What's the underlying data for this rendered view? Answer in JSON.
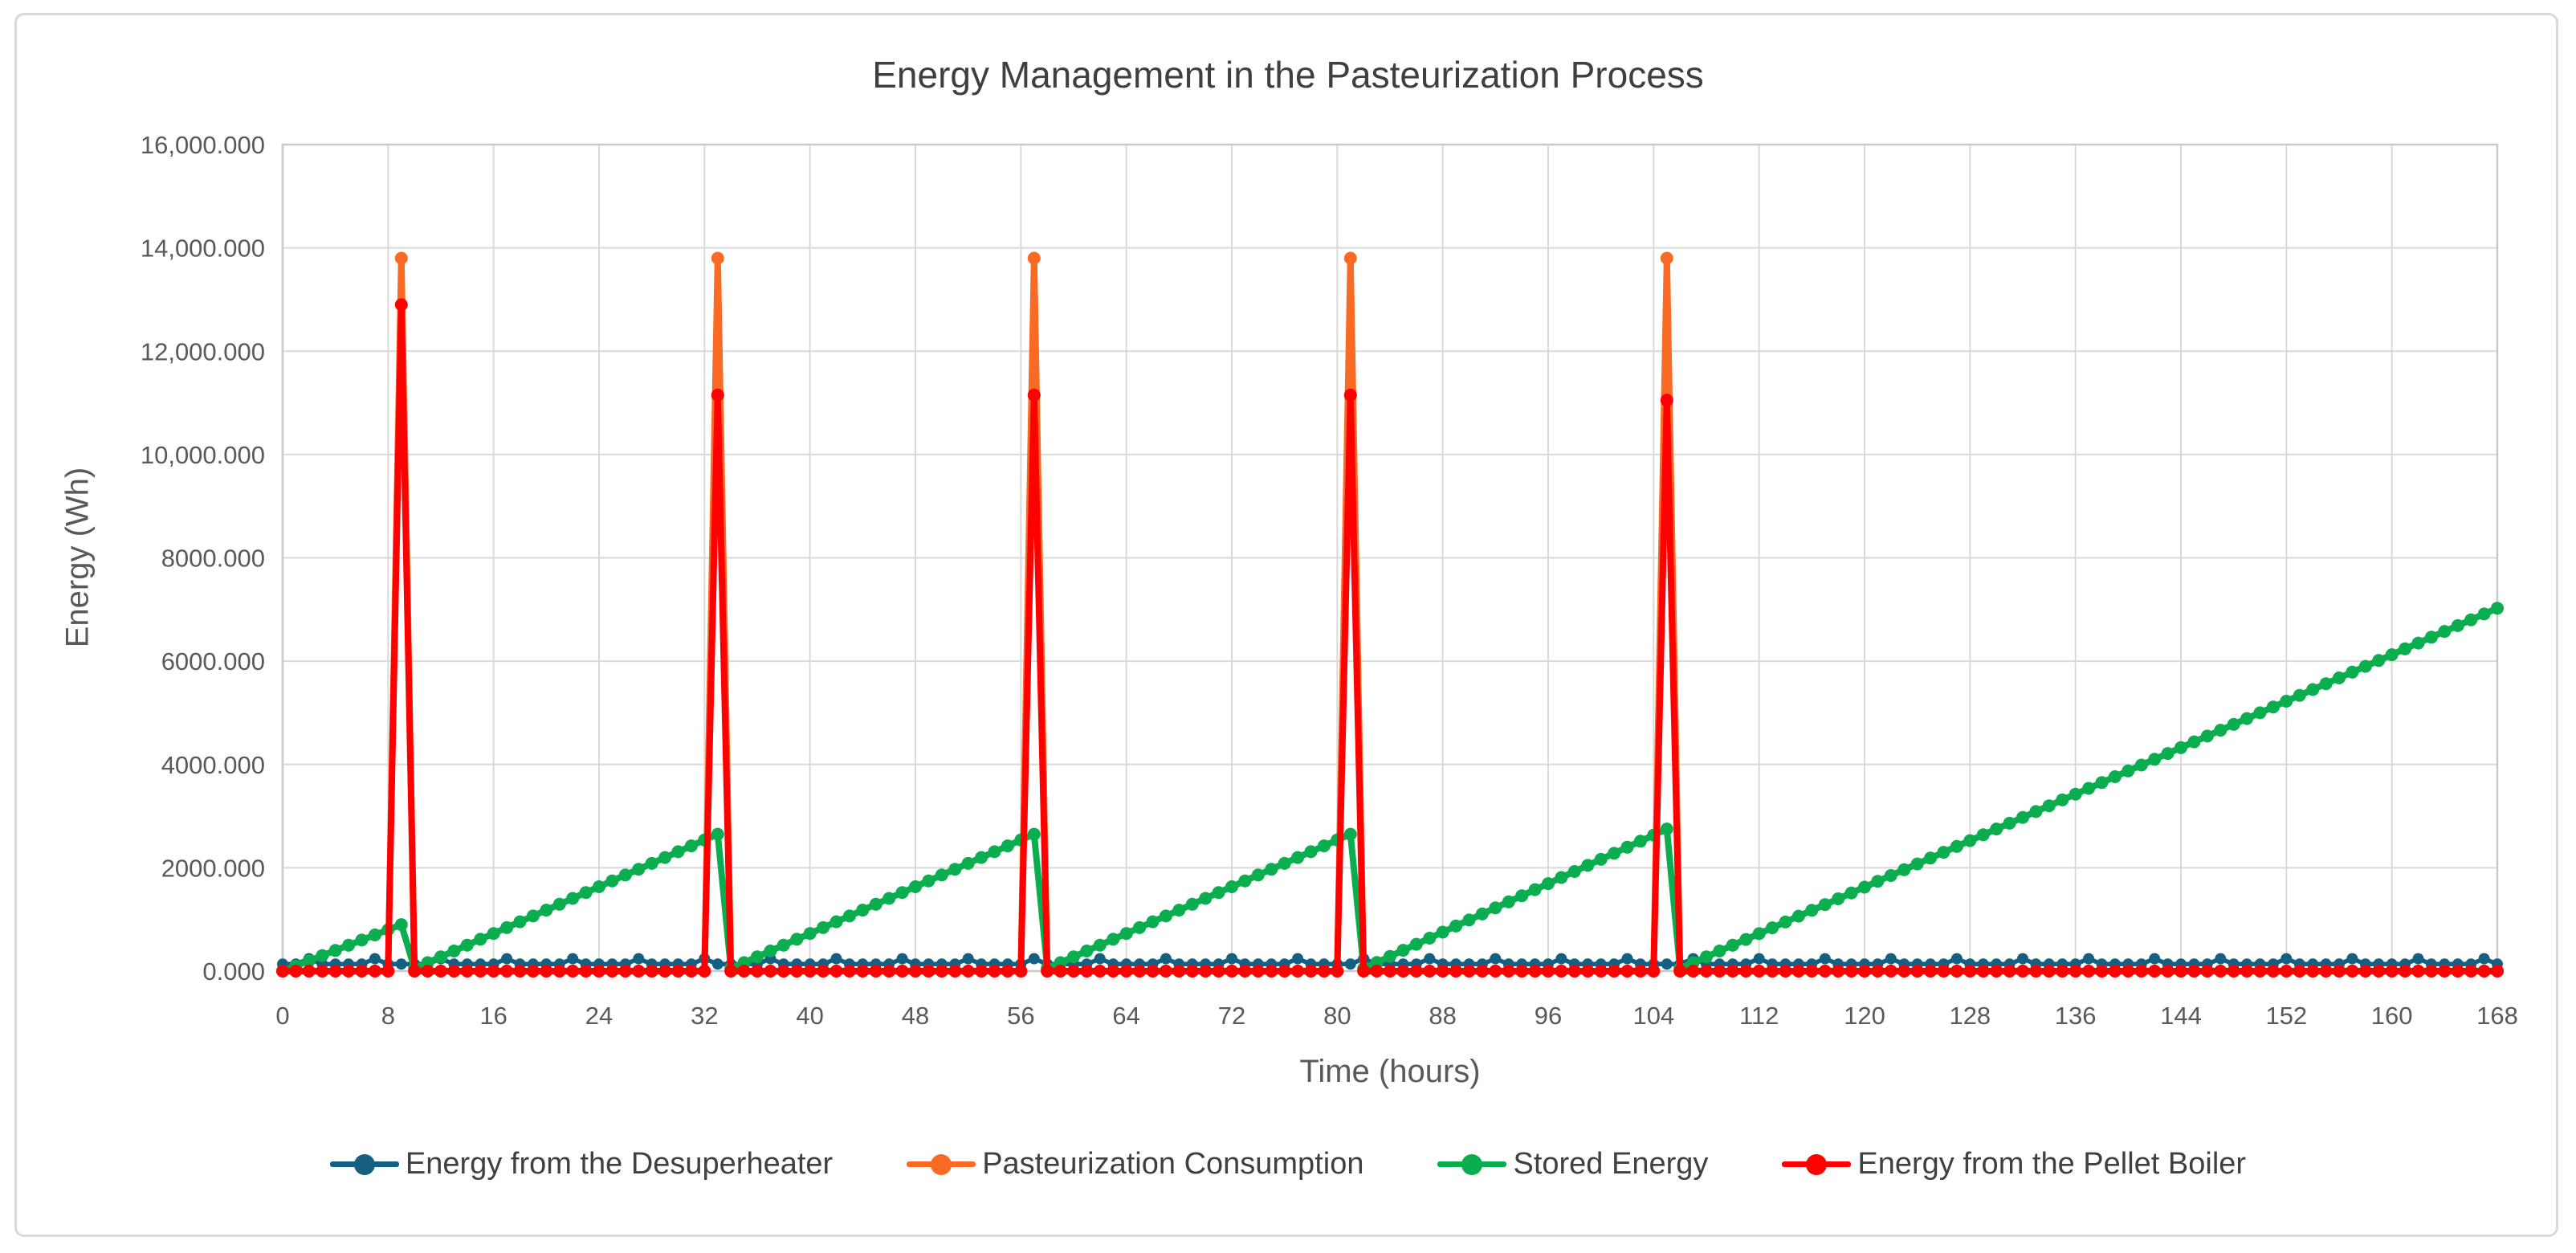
{
  "chart": {
    "title": "Energy Management in the Pasteurization Process",
    "x_axis": {
      "title": "Time (hours)",
      "min": 0,
      "max": 168,
      "tick_step": 8,
      "ticks": [
        0,
        8,
        16,
        24,
        32,
        40,
        48,
        56,
        64,
        72,
        80,
        88,
        96,
        104,
        112,
        120,
        128,
        136,
        144,
        152,
        160,
        168
      ]
    },
    "y_axis": {
      "title": "Energy (Wh)",
      "min": 0,
      "max": 16000,
      "tick_step": 2000,
      "ticks": [
        0,
        2000,
        4000,
        6000,
        8000,
        10000,
        12000,
        14000,
        16000
      ],
      "tick_labels": [
        "0.000",
        "2000.000",
        "4000.000",
        "6000.000",
        "8000.000",
        "10,000.000",
        "12,000.000",
        "14,000.000",
        "16,000.000"
      ]
    },
    "colors": {
      "gridline": "#D9D9D9",
      "plot_border": "#C9C9C9",
      "tick_text": "#595959",
      "title_text": "#3f3f3f"
    },
    "legend_position": "bottom"
  },
  "chart_data": {
    "type": "line",
    "title": "Energy Management in the Pasteurization Process",
    "xlabel": "Time (hours)",
    "ylabel": "Energy (Wh)",
    "xlim": [
      0,
      168
    ],
    "ylim": [
      0,
      16000
    ],
    "grid": true,
    "marker": "circle",
    "x_hours": {
      "start": 0,
      "step": 1,
      "count": 169
    },
    "spike_hours": [
      9,
      33,
      57,
      81,
      105
    ],
    "series": [
      {
        "name": "Energy from the Desuperheater",
        "color": "#156082",
        "values": [
          135,
          135,
          240,
          135,
          135,
          135,
          135,
          240,
          135,
          135,
          135,
          135,
          240,
          135,
          135,
          135,
          135,
          240,
          135,
          135,
          135,
          135,
          240,
          135,
          135,
          135,
          135,
          240,
          135,
          135,
          135,
          135,
          240,
          135,
          135,
          135,
          135,
          240,
          135,
          135,
          135,
          135,
          240,
          135,
          135,
          135,
          135,
          240,
          135,
          135,
          135,
          135,
          240,
          135,
          135,
          135,
          135,
          240,
          135,
          135,
          135,
          135,
          240,
          135,
          135,
          135,
          135,
          240,
          135,
          135,
          135,
          135,
          240,
          135,
          135,
          135,
          135,
          240,
          135,
          135,
          135,
          135,
          240,
          135,
          135,
          135,
          135,
          240,
          135,
          135,
          135,
          135,
          240,
          135,
          135,
          135,
          135,
          240,
          135,
          135,
          135,
          135,
          240,
          135,
          135,
          135,
          135,
          240,
          135,
          135,
          135,
          135,
          240,
          135,
          135,
          135,
          135,
          240,
          135,
          135,
          135,
          135,
          240,
          135,
          135,
          135,
          135,
          240,
          135,
          135,
          135,
          135,
          240,
          135,
          135,
          135,
          135,
          240,
          135,
          135,
          135,
          135,
          240,
          135,
          135,
          135,
          135,
          240,
          135,
          135,
          135,
          135,
          240,
          135,
          135,
          135,
          135,
          240,
          135,
          135,
          135,
          135,
          240,
          135,
          135,
          135,
          135,
          240,
          135
        ]
      },
      {
        "name": "Pasteurization Consumption",
        "color": "#F96A24",
        "values": [
          0,
          0,
          0,
          0,
          0,
          0,
          0,
          0,
          0,
          13800,
          0,
          0,
          0,
          0,
          0,
          0,
          0,
          0,
          0,
          0,
          0,
          0,
          0,
          0,
          0,
          0,
          0,
          0,
          0,
          0,
          0,
          0,
          0,
          13800,
          0,
          0,
          0,
          0,
          0,
          0,
          0,
          0,
          0,
          0,
          0,
          0,
          0,
          0,
          0,
          0,
          0,
          0,
          0,
          0,
          0,
          0,
          0,
          13800,
          0,
          0,
          0,
          0,
          0,
          0,
          0,
          0,
          0,
          0,
          0,
          0,
          0,
          0,
          0,
          0,
          0,
          0,
          0,
          0,
          0,
          0,
          0,
          13800,
          0,
          0,
          0,
          0,
          0,
          0,
          0,
          0,
          0,
          0,
          0,
          0,
          0,
          0,
          0,
          0,
          0,
          0,
          0,
          0,
          0,
          0,
          0,
          13800,
          0,
          0,
          0,
          0,
          0,
          0,
          0,
          0,
          0,
          0,
          0,
          0,
          0,
          0,
          0,
          0,
          0,
          0,
          0,
          0,
          0,
          0,
          0,
          0,
          0,
          0,
          0,
          0,
          0,
          0,
          0,
          0,
          0,
          0,
          0,
          0,
          0,
          0,
          0,
          0,
          0,
          0,
          0,
          0,
          0,
          0,
          0,
          0,
          0,
          0,
          0,
          0,
          0,
          0,
          0,
          0,
          0,
          0,
          0,
          0,
          0,
          0,
          0
        ]
      },
      {
        "name": "Stored Energy",
        "color": "#0BAE4F",
        "values": [
          0,
          100,
          200,
          300,
          400,
          500,
          600,
          700,
          800,
          900,
          50,
          163,
          276,
          389,
          502,
          615,
          728,
          841,
          954,
          1067,
          1180,
          1293,
          1407,
          1520,
          1633,
          1746,
          1859,
          1972,
          2085,
          2198,
          2311,
          2424,
          2537,
          2650,
          50,
          163,
          276,
          389,
          502,
          615,
          728,
          841,
          954,
          1067,
          1180,
          1293,
          1407,
          1520,
          1633,
          1746,
          1859,
          1972,
          2085,
          2198,
          2311,
          2424,
          2537,
          2650,
          50,
          163,
          276,
          389,
          502,
          615,
          728,
          841,
          954,
          1067,
          1180,
          1293,
          1407,
          1520,
          1633,
          1746,
          1859,
          1972,
          2085,
          2198,
          2311,
          2424,
          2537,
          2650,
          50,
          167,
          285,
          402,
          519,
          637,
          754,
          872,
          989,
          1106,
          1224,
          1341,
          1459,
          1576,
          1693,
          1811,
          1928,
          2046,
          2163,
          2280,
          2398,
          2515,
          2633,
          2750,
          50,
          163,
          275,
          388,
          500,
          613,
          725,
          838,
          950,
          1063,
          1175,
          1288,
          1400,
          1513,
          1625,
          1738,
          1850,
          1963,
          2075,
          2188,
          2300,
          2413,
          2525,
          2638,
          2750,
          2863,
          2975,
          3088,
          3200,
          3313,
          3425,
          3538,
          3650,
          3763,
          3875,
          3988,
          4100,
          4213,
          4325,
          4438,
          4550,
          4663,
          4775,
          4888,
          5000,
          5113,
          5225,
          5338,
          5450,
          5563,
          5675,
          5788,
          5900,
          6013,
          6125,
          6238,
          6350,
          6463,
          6575,
          6688,
          6800,
          6913,
          7025
        ]
      },
      {
        "name": "Energy from the Pellet Boiler",
        "color": "#FF0000",
        "values": [
          0,
          0,
          0,
          0,
          0,
          0,
          0,
          0,
          0,
          12900,
          0,
          0,
          0,
          0,
          0,
          0,
          0,
          0,
          0,
          0,
          0,
          0,
          0,
          0,
          0,
          0,
          0,
          0,
          0,
          0,
          0,
          0,
          0,
          11150,
          0,
          0,
          0,
          0,
          0,
          0,
          0,
          0,
          0,
          0,
          0,
          0,
          0,
          0,
          0,
          0,
          0,
          0,
          0,
          0,
          0,
          0,
          0,
          11150,
          0,
          0,
          0,
          0,
          0,
          0,
          0,
          0,
          0,
          0,
          0,
          0,
          0,
          0,
          0,
          0,
          0,
          0,
          0,
          0,
          0,
          0,
          0,
          11150,
          0,
          0,
          0,
          0,
          0,
          0,
          0,
          0,
          0,
          0,
          0,
          0,
          0,
          0,
          0,
          0,
          0,
          0,
          0,
          0,
          0,
          0,
          0,
          11050,
          0,
          0,
          0,
          0,
          0,
          0,
          0,
          0,
          0,
          0,
          0,
          0,
          0,
          0,
          0,
          0,
          0,
          0,
          0,
          0,
          0,
          0,
          0,
          0,
          0,
          0,
          0,
          0,
          0,
          0,
          0,
          0,
          0,
          0,
          0,
          0,
          0,
          0,
          0,
          0,
          0,
          0,
          0,
          0,
          0,
          0,
          0,
          0,
          0,
          0,
          0,
          0,
          0,
          0,
          0,
          0,
          0,
          0,
          0,
          0,
          0,
          0,
          0
        ]
      }
    ]
  }
}
